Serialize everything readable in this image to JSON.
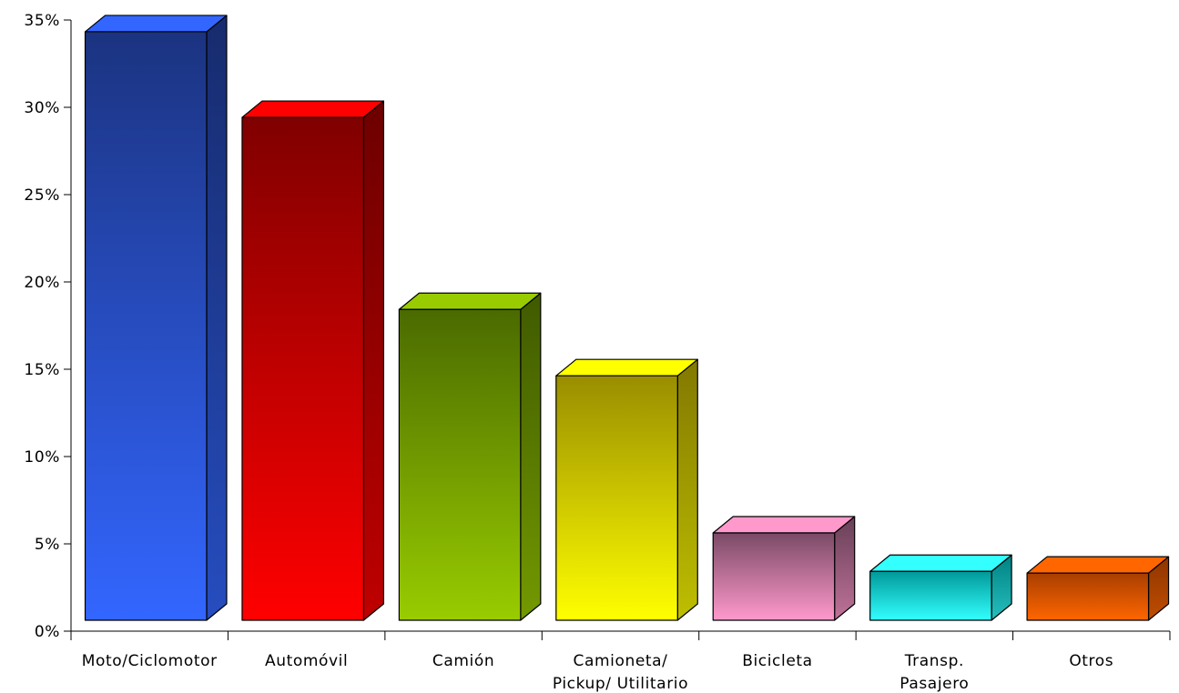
{
  "chart_data": {
    "type": "bar",
    "three_d": true,
    "title": "",
    "xlabel": "",
    "ylabel": "",
    "ylim": [
      0,
      35
    ],
    "y_ticks": [
      0,
      5,
      10,
      15,
      20,
      25,
      30,
      35
    ],
    "y_tick_labels": [
      "0%",
      "5%",
      "10%",
      "15%",
      "20%",
      "25%",
      "30%",
      "35%"
    ],
    "grid": false,
    "legend": "none",
    "categories": [
      [
        "Moto/Ciclomotor"
      ],
      [
        "Automóvil"
      ],
      [
        "Camión"
      ],
      [
        "Camioneta/",
        "Pickup/ Utilitario"
      ],
      [
        "Bicicleta"
      ],
      [
        "Transp.",
        "Pasajero"
      ],
      [
        "Otros"
      ]
    ],
    "values": [
      33.7,
      28.8,
      17.8,
      14.0,
      5.0,
      2.8,
      2.7
    ],
    "colors": [
      {
        "top": "#1b3380",
        "bottom": "#3366ff"
      },
      {
        "top": "#800000",
        "bottom": "#ff0000"
      },
      {
        "top": "#4a6a00",
        "bottom": "#99cc00"
      },
      {
        "top": "#998d00",
        "bottom": "#ffff00"
      },
      {
        "top": "#7a4a66",
        "bottom": "#ff99cc"
      },
      {
        "top": "#009999",
        "bottom": "#33ffff"
      },
      {
        "top": "#a83e00",
        "bottom": "#ff6600"
      }
    ]
  }
}
